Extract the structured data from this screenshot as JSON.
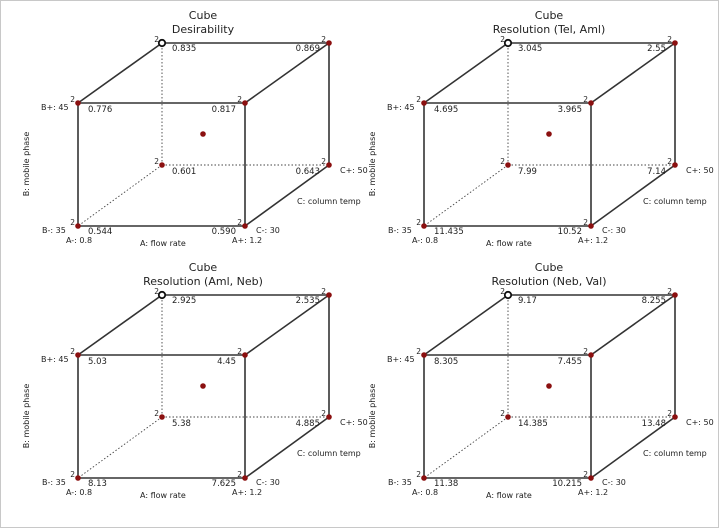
{
  "chart_data": [
    {
      "type": "cube",
      "title": "Cube",
      "subtitle": "Desirability",
      "factor_a": {
        "name": "A: flow rate",
        "low": "A-: 0.8",
        "high": "A+: 1.2"
      },
      "factor_b": {
        "name": "B: mobile phase",
        "low": "B-: 35",
        "high": "B+: 45"
      },
      "factor_c": {
        "name": "C: column temp",
        "low": "C-: 30",
        "high": "C+: 50"
      },
      "vertices": {
        "a-b-c-": {
          "value": "0.544",
          "runs": "2"
        },
        "a+b-c-": {
          "value": "0.590",
          "runs": "2"
        },
        "a-b+c-": {
          "value": "0.776",
          "runs": "2"
        },
        "a+b+c-": {
          "value": "0.817",
          "runs": "2"
        },
        "a-b-c+": {
          "value": "0.601",
          "runs": "2"
        },
        "a+b-c+": {
          "value": "0.643",
          "runs": "2"
        },
        "a-b+c+": {
          "value": "0.835",
          "runs": "2"
        },
        "a+b+c+": {
          "value": "0.869",
          "runs": "2"
        }
      }
    },
    {
      "type": "cube",
      "title": "Cube",
      "subtitle": "Resolution (Tel, Aml)",
      "factor_a": {
        "name": "A: flow rate",
        "low": "A-: 0.8",
        "high": "A+: 1.2"
      },
      "factor_b": {
        "name": "B: mobile phase",
        "low": "B-: 35",
        "high": "B+: 45"
      },
      "factor_c": {
        "name": "C: column temp",
        "low": "C-: 30",
        "high": "C+: 50"
      },
      "vertices": {
        "a-b-c-": {
          "value": "11.435",
          "runs": "2"
        },
        "a+b-c-": {
          "value": "10.52",
          "runs": "2"
        },
        "a-b+c-": {
          "value": "4.695",
          "runs": "2"
        },
        "a+b+c-": {
          "value": "3.965",
          "runs": "2"
        },
        "a-b-c+": {
          "value": "7.99",
          "runs": "2"
        },
        "a+b-c+": {
          "value": "7.14",
          "runs": "2"
        },
        "a-b+c+": {
          "value": "3.045",
          "runs": "2"
        },
        "a+b+c+": {
          "value": "2.55",
          "runs": "2"
        }
      }
    },
    {
      "type": "cube",
      "title": "Cube",
      "subtitle": "Resolution (Aml, Neb)",
      "factor_a": {
        "name": "A: flow rate",
        "low": "A-: 0.8",
        "high": "A+: 1.2"
      },
      "factor_b": {
        "name": "B: mobile phase",
        "low": "B-: 35",
        "high": "B+: 45"
      },
      "factor_c": {
        "name": "C: column temp",
        "low": "C-: 30",
        "high": "C+: 50"
      },
      "vertices": {
        "a-b-c-": {
          "value": "8.13",
          "runs": "2"
        },
        "a+b-c-": {
          "value": "7.625",
          "runs": "2"
        },
        "a-b+c-": {
          "value": "5.03",
          "runs": "2"
        },
        "a+b+c-": {
          "value": "4.45",
          "runs": "2"
        },
        "a-b-c+": {
          "value": "5.38",
          "runs": "2"
        },
        "a+b-c+": {
          "value": "4.885",
          "runs": "2"
        },
        "a-b+c+": {
          "value": "2.925",
          "runs": "2"
        },
        "a+b+c+": {
          "value": "2.535",
          "runs": "2"
        }
      }
    },
    {
      "type": "cube",
      "title": "Cube",
      "subtitle": "Resolution (Neb, Val)",
      "factor_a": {
        "name": "A: flow rate",
        "low": "A-: 0.8",
        "high": "A+: 1.2"
      },
      "factor_b": {
        "name": "B: mobile phase",
        "low": "B-: 35",
        "high": "B+: 45"
      },
      "factor_c": {
        "name": "C: column temp",
        "low": "C-: 30",
        "high": "C+: 50"
      },
      "vertices": {
        "a-b-c-": {
          "value": "11.38",
          "runs": "2"
        },
        "a+b-c-": {
          "value": "10.215",
          "runs": "2"
        },
        "a-b+c-": {
          "value": "8.305",
          "runs": "2"
        },
        "a+b+c-": {
          "value": "7.455",
          "runs": "2"
        },
        "a-b-c+": {
          "value": "14.385",
          "runs": "2"
        },
        "a+b-c+": {
          "value": "13.48",
          "runs": "2"
        },
        "a-b+c+": {
          "value": "9.17",
          "runs": "2"
        },
        "a+b+c+": {
          "value": "8.255",
          "runs": "2"
        }
      }
    }
  ],
  "colors": {
    "point": "#8b1010",
    "open_point_stroke": "#111111",
    "edge": "#333333",
    "hidden_edge": "#444444"
  }
}
